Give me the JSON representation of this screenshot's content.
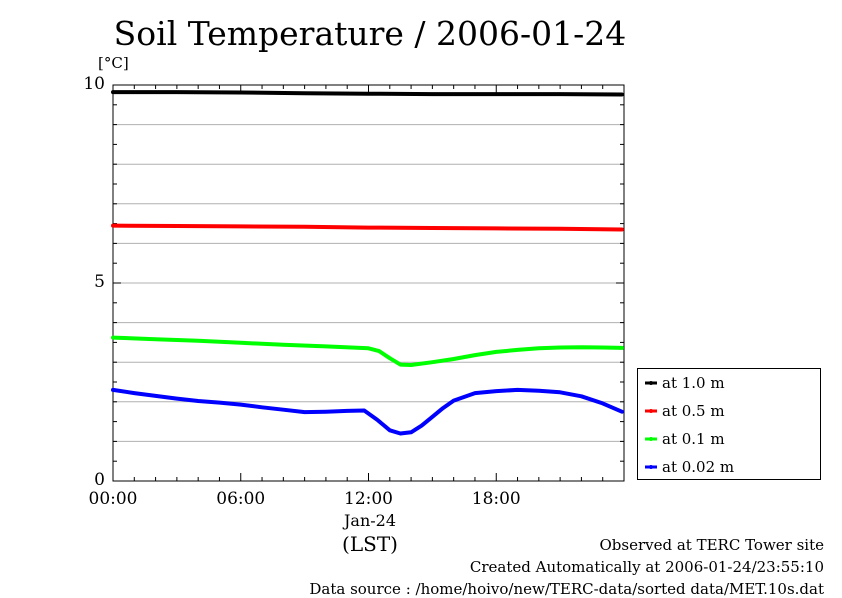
{
  "chart_data": {
    "type": "line",
    "title": "Soil Temperature / 2006-01-24",
    "ylabel": "[°C]",
    "ylim": [
      0,
      10
    ],
    "yticks": [
      "0",
      "5",
      "10"
    ],
    "xlim": [
      0,
      24
    ],
    "xticks": [
      "00:00",
      "06:00",
      "12:00",
      "18:00"
    ],
    "xtick_hours": [
      0,
      6,
      12,
      18
    ],
    "date_label": "Jan-24",
    "x_unit_label": "(LST)",
    "grid": "horizontal",
    "legend_position": "right",
    "series": [
      {
        "name": "at 1.0 m",
        "color": "#000000",
        "x": [
          0,
          3,
          6,
          9,
          12,
          15,
          18,
          21,
          23.9
        ],
        "y": [
          9.82,
          9.82,
          9.81,
          9.79,
          9.78,
          9.77,
          9.77,
          9.77,
          9.76
        ]
      },
      {
        "name": "at 0.5 m",
        "color": "#ff0000",
        "x": [
          0,
          3,
          6,
          9,
          12,
          15,
          18,
          21,
          23.9
        ],
        "y": [
          6.45,
          6.44,
          6.43,
          6.42,
          6.4,
          6.39,
          6.38,
          6.37,
          6.35
        ]
      },
      {
        "name": "at 0.1 m",
        "color": "#00ff00",
        "x": [
          0,
          2,
          4,
          6,
          8,
          10,
          12,
          12.5,
          13,
          13.5,
          14,
          15,
          16,
          17,
          18,
          19,
          20,
          21,
          22,
          23,
          23.9
        ],
        "y": [
          3.62,
          3.58,
          3.54,
          3.49,
          3.44,
          3.4,
          3.35,
          3.28,
          3.1,
          2.94,
          2.93,
          3.0,
          3.08,
          3.18,
          3.26,
          3.31,
          3.35,
          3.37,
          3.38,
          3.37,
          3.36
        ]
      },
      {
        "name": "at 0.02 m",
        "color": "#0000ff",
        "x": [
          0,
          1,
          2,
          3,
          4,
          5,
          6,
          7,
          8,
          9,
          10,
          11,
          11.8,
          12.4,
          13,
          13.5,
          14,
          14.5,
          15,
          15.5,
          16,
          17,
          18,
          19,
          20,
          21,
          22,
          23,
          23.9
        ],
        "y": [
          2.3,
          2.22,
          2.15,
          2.08,
          2.02,
          1.98,
          1.93,
          1.86,
          1.8,
          1.74,
          1.75,
          1.77,
          1.78,
          1.55,
          1.28,
          1.2,
          1.23,
          1.4,
          1.62,
          1.84,
          2.03,
          2.22,
          2.27,
          2.3,
          2.28,
          2.24,
          2.14,
          1.96,
          1.75
        ]
      }
    ]
  },
  "footer": {
    "site": "Observed at TERC Tower site",
    "created": "Created Automatically at 2006-01-24/23:55:10",
    "source": "Data source : /home/hoivo/new/TERC-data/sorted  data/MET.10s.dat"
  }
}
